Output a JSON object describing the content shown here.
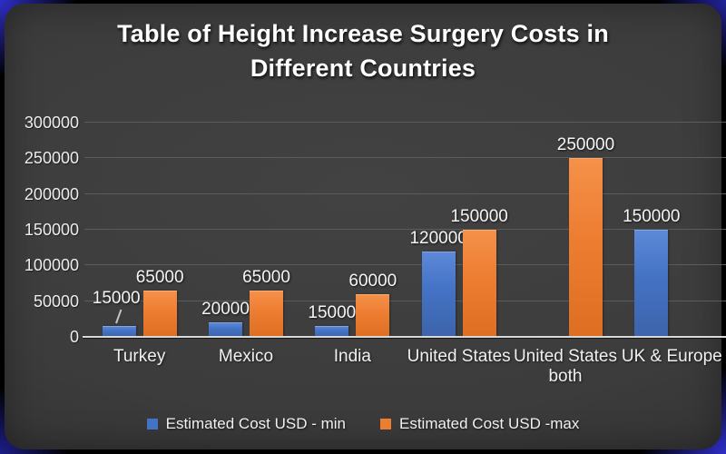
{
  "title": {
    "line1": "Table of Height Increase Surgery Costs in",
    "line2": "Different Countries"
  },
  "chart_data": {
    "type": "bar",
    "title": "Table of Height Increase Surgery Costs in Different Countries",
    "categories": [
      "Turkey",
      "Mexico",
      "India",
      "United States",
      "United States both",
      "UK & Europe"
    ],
    "series": [
      {
        "name": "Estimated Cost USD - min",
        "color": "#4472C4",
        "values": [
          15000,
          20000,
          15000,
          120000,
          null,
          150000
        ]
      },
      {
        "name": "Estimated Cost USD -max",
        "color": "#ED7D31",
        "values": [
          65000,
          65000,
          60000,
          150000,
          250000,
          null
        ]
      }
    ],
    "ylim": [
      0,
      300000
    ],
    "yticks": [
      0,
      50000,
      100000,
      150000,
      200000,
      250000,
      300000
    ],
    "grid": "horizontal",
    "legend_position": "bottom",
    "data_labels": true,
    "data_label_callouts": [
      {
        "category_index": 0,
        "series_index": 0
      }
    ]
  },
  "colors": {
    "background": "#3c3c3c",
    "frame_accent": "#2e2ec8",
    "text": "#f0f0f0",
    "gridline": "#5c5c5c",
    "axis_line": "#d9d9d9",
    "series_min": "#4472C4",
    "series_max": "#ED7D31"
  }
}
